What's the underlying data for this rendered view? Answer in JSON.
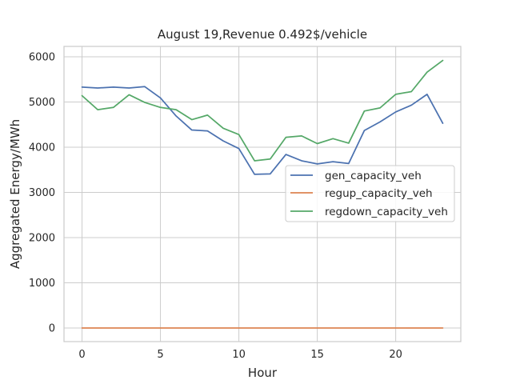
{
  "chart_data": {
    "type": "line",
    "title": "August 19,Revenue 0.492$/vehicle",
    "xlabel": "Hour",
    "ylabel": "Aggregated Energy/MWh",
    "xlim": [
      -1.15,
      24.15
    ],
    "ylim": [
      -300,
      6230
    ],
    "xticks": [
      0,
      5,
      10,
      15,
      20
    ],
    "yticks": [
      0,
      1000,
      2000,
      3000,
      4000,
      5000,
      6000
    ],
    "grid": true,
    "legend_position": "center-right",
    "x": [
      0,
      1,
      2,
      3,
      4,
      5,
      6,
      7,
      8,
      9,
      10,
      11,
      12,
      13,
      14,
      15,
      16,
      17,
      18,
      19,
      20,
      21,
      22,
      23
    ],
    "series": [
      {
        "name": "gen_capacity_veh",
        "color": "#4c72b0",
        "values": [
          5330,
          5310,
          5330,
          5310,
          5340,
          5090,
          4690,
          4380,
          4360,
          4140,
          3970,
          3400,
          3410,
          3840,
          3700,
          3630,
          3680,
          3640,
          4370,
          4560,
          4780,
          4930,
          5170,
          4530
        ]
      },
      {
        "name": "regup_capacity_veh",
        "color": "#dd8452",
        "values": [
          0,
          0,
          0,
          0,
          0,
          0,
          0,
          0,
          0,
          0,
          0,
          0,
          0,
          0,
          0,
          0,
          0,
          0,
          0,
          0,
          0,
          0,
          0,
          0
        ]
      },
      {
        "name": "regdown_capacity_veh",
        "color": "#55a868",
        "values": [
          5140,
          4830,
          4880,
          5160,
          4990,
          4880,
          4830,
          4610,
          4710,
          4420,
          4280,
          3700,
          3740,
          4220,
          4250,
          4080,
          4190,
          4090,
          4800,
          4870,
          5170,
          5230,
          5660,
          5920
        ]
      }
    ]
  }
}
